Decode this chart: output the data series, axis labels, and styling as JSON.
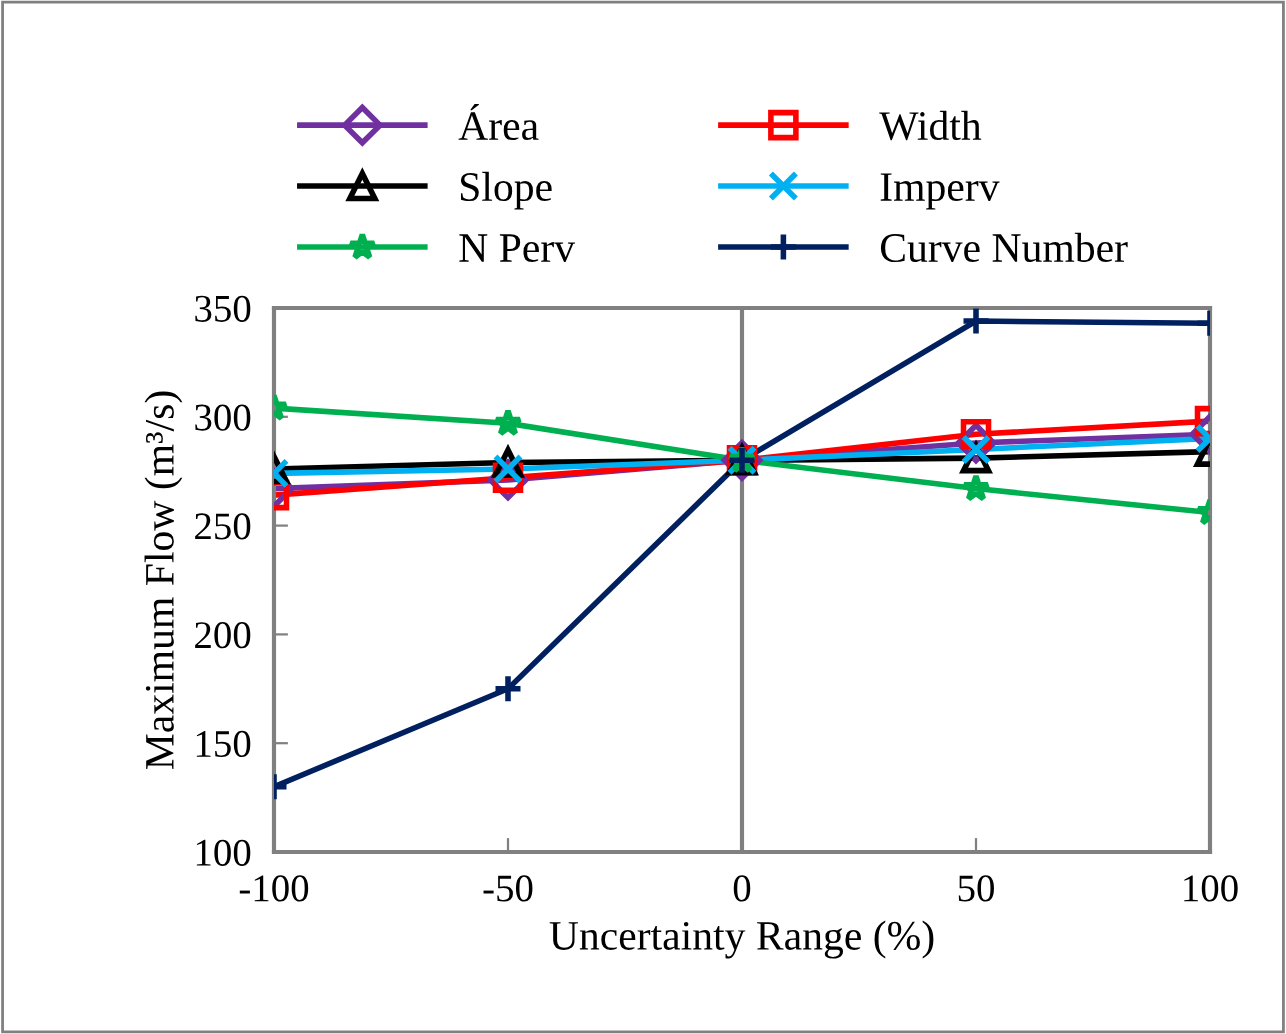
{
  "chart_data": {
    "type": "line",
    "xlabel": "Uncertainty Range (%)",
    "ylabel": "Maximum Flow (m³/s)",
    "x": [
      -100,
      -50,
      0,
      50,
      100
    ],
    "series": [
      {
        "name": "Área",
        "color": "#7030a0",
        "marker": "diamond",
        "values": [
          267,
          271,
          280,
          288,
          292
        ]
      },
      {
        "name": "Width",
        "color": "#ff0000",
        "marker": "square",
        "values": [
          264,
          272,
          280,
          292,
          298
        ]
      },
      {
        "name": "Slope",
        "color": "#000000",
        "marker": "triangle",
        "values": [
          276,
          279,
          280,
          281,
          284
        ]
      },
      {
        "name": "Imperv",
        "color": "#00b0f0",
        "marker": "cross",
        "values": [
          274,
          276,
          280,
          285,
          290
        ]
      },
      {
        "name": "N Perv",
        "color": "#00b050",
        "marker": "star",
        "values": [
          304,
          297,
          280,
          267,
          256
        ]
      },
      {
        "name": "Curve Number",
        "color": "#002060",
        "marker": "plus",
        "values": [
          130,
          175,
          280,
          344,
          343
        ]
      }
    ],
    "xlim": [
      -100,
      100
    ],
    "xticks": [
      -100,
      -50,
      0,
      50,
      100
    ],
    "ylim": [
      100,
      350
    ],
    "yticks": [
      100,
      150,
      200,
      250,
      300,
      350
    ],
    "ref_lines": [
      {
        "axis": "x",
        "value": 0,
        "color": "#808080"
      }
    ],
    "grid": false,
    "legend": "top",
    "line_style": "solid"
  }
}
